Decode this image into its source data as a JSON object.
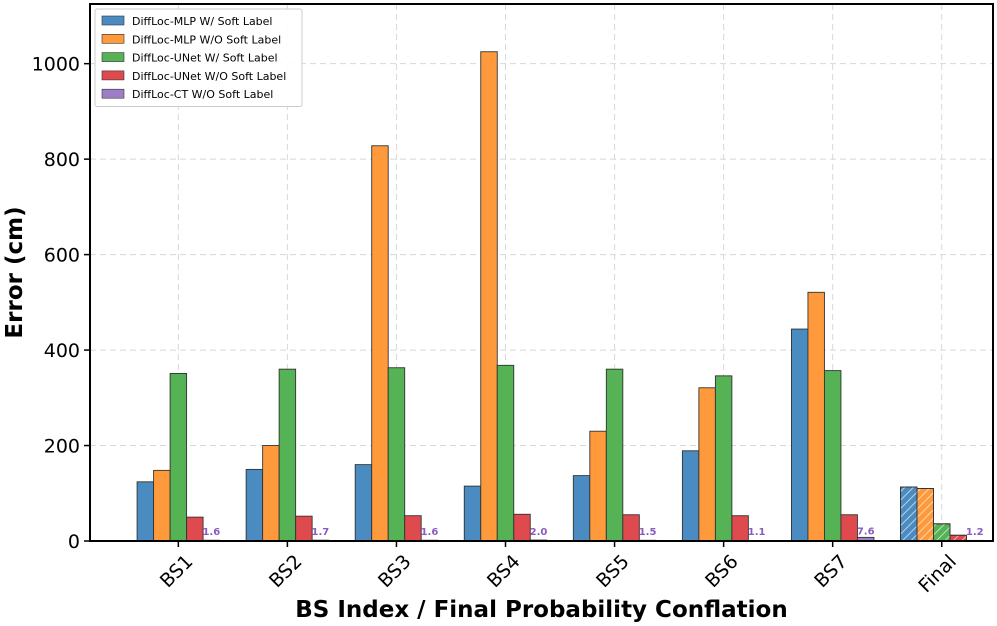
{
  "chart_data": {
    "type": "bar",
    "xlabel": "BS Index / Final Probability Conflation",
    "ylabel": "Error (cm)",
    "ylim": [
      0,
      1125
    ],
    "yticks": [
      0,
      200,
      400,
      600,
      800,
      1000
    ],
    "grid": true,
    "legend_position": "top-left",
    "categories": [
      "BS1",
      "BS2",
      "BS3",
      "BS4",
      "BS5",
      "BS6",
      "BS7",
      "Final"
    ],
    "hatched_category": "Final",
    "series": [
      {
        "name": "DiffLoc-MLP W/ Soft Label",
        "color": "#4a8cc2",
        "values": [
          124,
          150,
          160,
          115,
          137,
          189,
          444,
          113
        ]
      },
      {
        "name": "DiffLoc-MLP W/O Soft Label",
        "color": "#ff9a3c",
        "values": [
          148,
          200,
          828,
          1025,
          230,
          321,
          521,
          110
        ]
      },
      {
        "name": "DiffLoc-UNet W/ Soft Label",
        "color": "#55b255",
        "values": [
          351,
          360,
          363,
          368,
          360,
          346,
          357,
          36
        ]
      },
      {
        "name": "DiffLoc-UNet W/O Soft Label",
        "color": "#df4a4e",
        "values": [
          50,
          52,
          53,
          56,
          55,
          53,
          55,
          12
        ]
      },
      {
        "name": "DiffLoc-CT W/O Soft Label",
        "color": "#9f7ec8",
        "values": [
          1.6,
          1.7,
          1.6,
          2.0,
          1.5,
          1.1,
          7.6,
          1.2
        ]
      }
    ],
    "data_labels": {
      "series": "DiffLoc-CT W/O Soft Label",
      "color": "#8a5cc0",
      "values": [
        "1.6",
        "1.7",
        "1.6",
        "2.0",
        "1.5",
        "1.1",
        "7.6",
        "1.2"
      ]
    }
  }
}
